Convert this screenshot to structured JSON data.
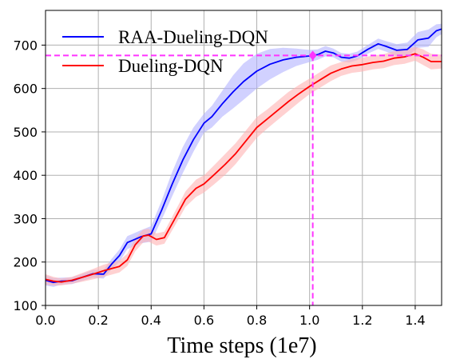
{
  "chart_data": {
    "type": "line",
    "title": "",
    "xlabel": "Time steps (1e7)",
    "ylabel": "",
    "xlim": [
      0.0,
      1.5
    ],
    "ylim": [
      100,
      780
    ],
    "x_ticks": [
      "0.0",
      "0.2",
      "0.4",
      "0.6",
      "0.8",
      "1.0",
      "1.2",
      "1.4"
    ],
    "x_tick_values": [
      0.0,
      0.2,
      0.4,
      0.6,
      0.8,
      1.0,
      1.2,
      1.4
    ],
    "y_ticks": [
      "100",
      "200",
      "300",
      "400",
      "500",
      "600",
      "700"
    ],
    "y_tick_values": [
      100,
      200,
      300,
      400,
      500,
      600,
      700
    ],
    "grid": true,
    "legend_position": "top-left",
    "series": [
      {
        "name": "RAA-Dueling-DQN",
        "color": "#0000ff",
        "band_color": "#b3b3ff",
        "x": [
          0.0,
          0.03,
          0.06,
          0.1,
          0.14,
          0.18,
          0.22,
          0.25,
          0.28,
          0.31,
          0.33,
          0.36,
          0.4,
          0.44,
          0.48,
          0.52,
          0.56,
          0.6,
          0.63,
          0.67,
          0.71,
          0.75,
          0.8,
          0.85,
          0.9,
          0.95,
          1.0,
          1.03,
          1.06,
          1.09,
          1.12,
          1.15,
          1.18,
          1.22,
          1.26,
          1.29,
          1.33,
          1.37,
          1.41,
          1.45,
          1.48,
          1.5
        ],
        "y": [
          158,
          153,
          156,
          157,
          165,
          173,
          172,
          195,
          215,
          245,
          250,
          258,
          265,
          320,
          380,
          435,
          482,
          520,
          535,
          565,
          592,
          616,
          640,
          656,
          666,
          672,
          675,
          678,
          686,
          682,
          672,
          670,
          675,
          690,
          703,
          697,
          688,
          690,
          712,
          716,
          733,
          737
        ],
        "band": [
          12,
          10,
          8,
          8,
          8,
          9,
          10,
          12,
          14,
          15,
          15,
          15,
          18,
          22,
          28,
          30,
          28,
          22,
          25,
          30,
          38,
          42,
          40,
          35,
          28,
          20,
          14,
          12,
          12,
          10,
          10,
          10,
          10,
          10,
          12,
          12,
          14,
          16,
          18,
          20,
          15,
          12
        ]
      },
      {
        "name": "Dueling-DQN",
        "color": "#ff0000",
        "band_color": "#ffb3b3",
        "x": [
          0.0,
          0.03,
          0.06,
          0.1,
          0.14,
          0.18,
          0.22,
          0.25,
          0.28,
          0.31,
          0.34,
          0.37,
          0.39,
          0.42,
          0.45,
          0.49,
          0.53,
          0.57,
          0.6,
          0.64,
          0.68,
          0.72,
          0.76,
          0.8,
          0.84,
          0.88,
          0.92,
          0.96,
          1.0,
          1.04,
          1.08,
          1.12,
          1.16,
          1.2,
          1.24,
          1.28,
          1.32,
          1.36,
          1.4,
          1.43,
          1.46,
          1.5
        ],
        "y": [
          160,
          156,
          154,
          158,
          165,
          172,
          180,
          185,
          190,
          205,
          240,
          260,
          262,
          252,
          256,
          300,
          345,
          370,
          380,
          402,
          425,
          450,
          480,
          510,
          530,
          550,
          570,
          588,
          605,
          620,
          635,
          645,
          652,
          655,
          660,
          663,
          670,
          673,
          680,
          672,
          662,
          662
        ],
        "band": [
          12,
          10,
          8,
          8,
          10,
          12,
          14,
          14,
          14,
          14,
          15,
          15,
          15,
          14,
          14,
          16,
          18,
          20,
          20,
          22,
          24,
          24,
          24,
          24,
          22,
          22,
          22,
          20,
          18,
          18,
          18,
          16,
          16,
          16,
          16,
          16,
          16,
          16,
          16,
          18,
          18,
          16
        ]
      }
    ],
    "reference_lines": [
      {
        "orientation": "horizontal",
        "value": 676,
        "color": "#ff33ff"
      },
      {
        "orientation": "vertical",
        "value": 1.012,
        "color": "#ff33ff"
      }
    ],
    "marker": {
      "x": 1.012,
      "y": 676,
      "color": "#ff33ff"
    }
  }
}
